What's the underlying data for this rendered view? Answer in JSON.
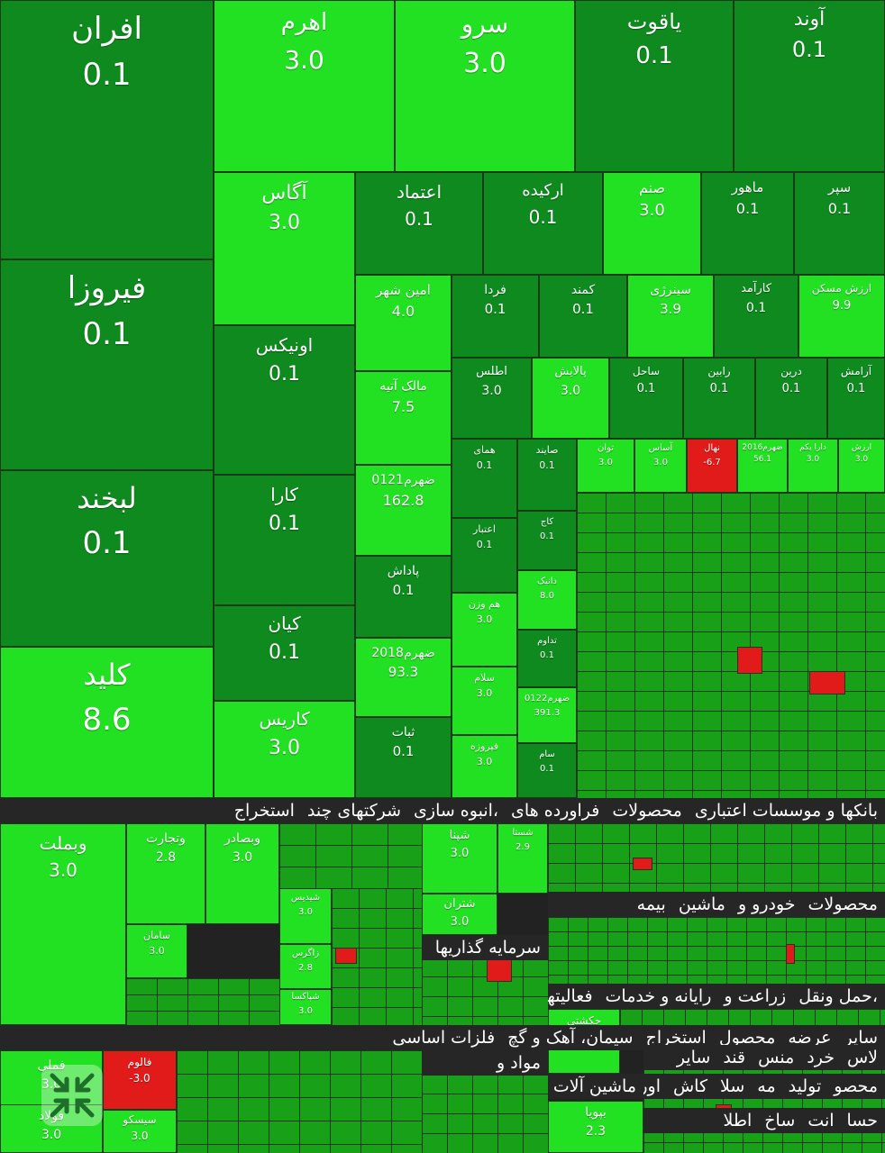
{
  "colors": {
    "dark_green": "#0e8a1e",
    "mid_green": "#17b417",
    "bright_green": "#22e022",
    "red": "#e11a1a",
    "band_bg": "#262626"
  },
  "sections": [
    "استخراج",
    "شرکتهای چند",
    "انبوه سازی،",
    "فراورده های",
    "محصولات",
    "بانکها و موسسات اعتباری",
    "بیمه",
    "ماشین",
    "خودرو و",
    "محصولات",
    "سرمایه گذاریها",
    "فعالیتهای",
    "رایانه و خدمات",
    "زراعت و",
    "حمل ونقل،",
    "فلزات اساسی",
    "سیمان، آهک و گچ",
    "استخراج",
    "محصول",
    "عرضه",
    "سایر",
    "مواد و",
    "سایر",
    "قند",
    "منس",
    "خرد",
    "لاس",
    "ماشین آلات",
    "استخر",
    "اوراق",
    "کاش",
    "سلا",
    "مه",
    "تولید",
    "محصو",
    "اطلا",
    "ساخ",
    "انت",
    "حسا"
  ],
  "tiles": [
    {
      "name": "افران",
      "value": "0.1"
    },
    {
      "name": "اهرم",
      "value": "3.0"
    },
    {
      "name": "سرو",
      "value": "3.0"
    },
    {
      "name": "یاقوت",
      "value": "0.1"
    },
    {
      "name": "آوند",
      "value": "0.1"
    },
    {
      "name": "فیروزا",
      "value": "0.1"
    },
    {
      "name": "آگاس",
      "value": "3.0"
    },
    {
      "name": "اعتماد",
      "value": "0.1"
    },
    {
      "name": "ارکیده",
      "value": "0.1"
    },
    {
      "name": "صنم",
      "value": "3.0"
    },
    {
      "name": "ماهور",
      "value": "0.1"
    },
    {
      "name": "سپر",
      "value": "0.1"
    },
    {
      "name": "اونیکس",
      "value": "0.1"
    },
    {
      "name": "امین شهر",
      "value": "4.0"
    },
    {
      "name": "فردا",
      "value": "0.1"
    },
    {
      "name": "کمند",
      "value": "0.1"
    },
    {
      "name": "سینرژی",
      "value": "3.9"
    },
    {
      "name": "کارآمد",
      "value": "0.1"
    },
    {
      "name": "ارزش مسکن",
      "value": "9.9"
    },
    {
      "name": "لبخند",
      "value": "0.1"
    },
    {
      "name": "مالک آتیه",
      "value": "7.5"
    },
    {
      "name": "اطلس",
      "value": "3.0"
    },
    {
      "name": "پالایش",
      "value": "3.0"
    },
    {
      "name": "ساحل",
      "value": "0.1"
    },
    {
      "name": "رابین",
      "value": "0.1"
    },
    {
      "name": "درین",
      "value": "0.1"
    },
    {
      "name": "آرامش",
      "value": "0.1"
    },
    {
      "name": "کارا",
      "value": "0.1"
    },
    {
      "name": "ضهرم0121",
      "value": "162.8"
    },
    {
      "name": "همای",
      "value": "0.1"
    },
    {
      "name": "صایند",
      "value": "0.1"
    },
    {
      "name": "توان",
      "value": "3.0"
    },
    {
      "name": "آساس",
      "value": "3.0"
    },
    {
      "name": "نهال",
      "value": "-6.7"
    },
    {
      "name": "ضهرم2016",
      "value": "56.1"
    },
    {
      "name": "دارا یکم",
      "value": "3.0"
    },
    {
      "name": "ارزش",
      "value": "3.0"
    },
    {
      "name": "کلید",
      "value": "8.6"
    },
    {
      "name": "پاداش",
      "value": "0.1"
    },
    {
      "name": "اعتبار",
      "value": "0.1"
    },
    {
      "name": "کاج",
      "value": "0.1"
    },
    {
      "name": "کیان",
      "value": "0.1"
    },
    {
      "name": "ضهرم2018",
      "value": "93.3"
    },
    {
      "name": "هم وزن",
      "value": "3.0"
    },
    {
      "name": "دانیک",
      "value": "8.0"
    },
    {
      "name": "تداوم",
      "value": "0.1"
    },
    {
      "name": "کاریس",
      "value": "3.0"
    },
    {
      "name": "ثبات",
      "value": "0.1"
    },
    {
      "name": "سلام",
      "value": "3.0"
    },
    {
      "name": "ضهرم0122",
      "value": "391.3"
    },
    {
      "name": "فیروزه",
      "value": "3.0"
    },
    {
      "name": "سام",
      "value": "0.1"
    },
    {
      "name": "وبملت",
      "value": "3.0"
    },
    {
      "name": "وتجارت",
      "value": "2.8"
    },
    {
      "name": "وبصادر",
      "value": "3.0"
    },
    {
      "name": "شپنا",
      "value": "3.0"
    },
    {
      "name": "شستا",
      "value": "2.9"
    },
    {
      "name": "شتران",
      "value": "3.0"
    },
    {
      "name": "سامان",
      "value": "3.0"
    },
    {
      "name": "شیدیس",
      "value": "3.0"
    },
    {
      "name": "زاگرس",
      "value": "2.8"
    },
    {
      "name": "شپاکسا",
      "value": "3.0"
    },
    {
      "name": "حکشتی",
      "value": "3.0"
    },
    {
      "name": "فملی",
      "value": "3.0"
    },
    {
      "name": "فالوم",
      "value": "-3.0"
    },
    {
      "name": "فولاد",
      "value": "3.0"
    },
    {
      "name": "سیسکو",
      "value": "3.0"
    },
    {
      "name": "بپویا",
      "value": "2.3"
    }
  ],
  "ui": {
    "collapse_icon": "collapse-arrows-icon"
  }
}
